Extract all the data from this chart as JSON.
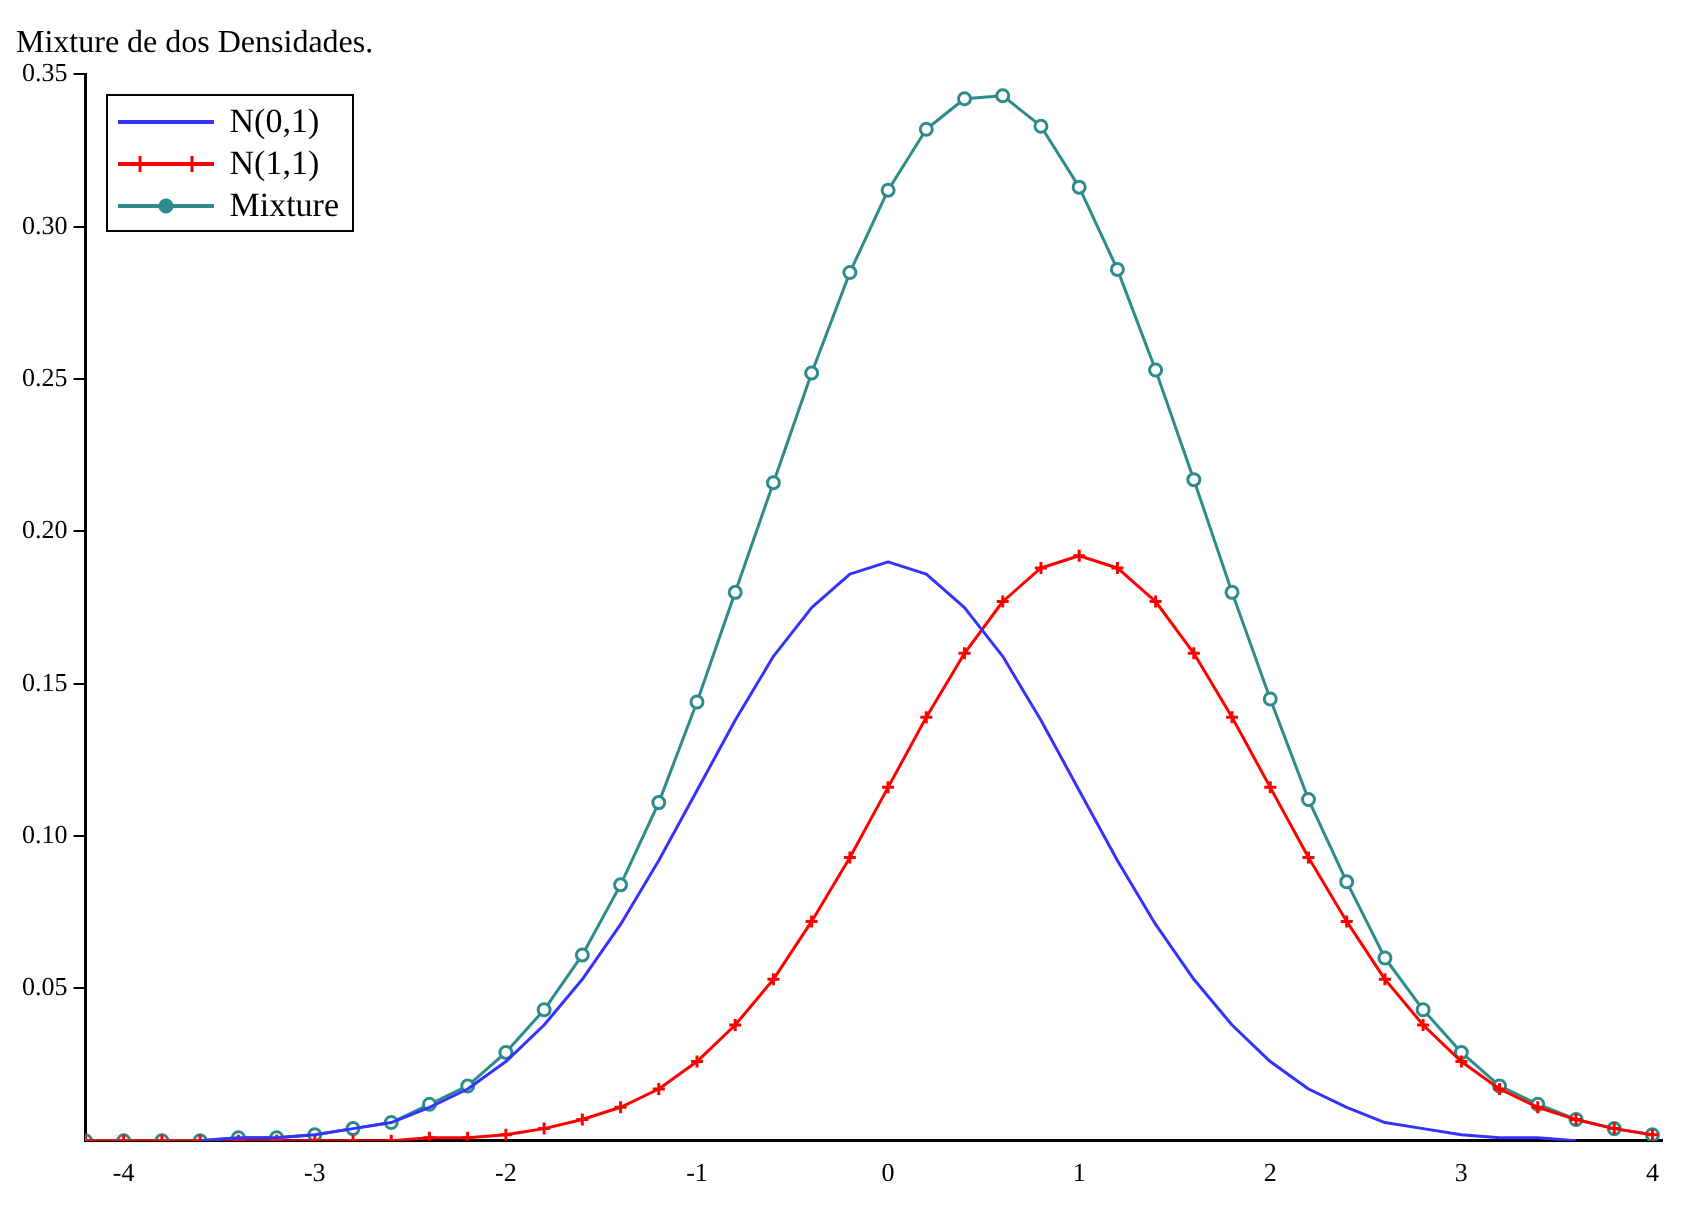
{
  "chart_data": {
    "type": "line",
    "title": "Mixture de dos Densidades.",
    "x": [
      -4.2,
      -4.0,
      -3.8,
      -3.6,
      -3.4,
      -3.2,
      -3.0,
      -2.8,
      -2.6,
      -2.4,
      -2.2,
      -2.0,
      -1.8,
      -1.6,
      -1.4,
      -1.2,
      -1.0,
      -0.8,
      -0.6,
      -0.4,
      -0.2,
      0,
      0.2,
      0.4,
      0.6,
      0.8,
      1.0,
      1.2,
      1.4,
      1.6,
      1.8,
      2.0,
      2.2,
      2.4,
      2.6,
      2.8,
      3.0,
      3.2,
      3.4,
      3.6,
      3.8,
      4.0
    ],
    "series": [
      {
        "name": "N(0,1)",
        "color": "#3333ff",
        "marker": "none",
        "values": [
          null,
          null,
          null,
          0,
          0.001,
          0.001,
          0.002,
          0.004,
          0.006,
          0.011,
          0.017,
          0.026,
          0.038,
          0.053,
          0.071,
          0.092,
          0.115,
          0.138,
          0.159,
          0.175,
          0.186,
          0.19,
          0.186,
          0.175,
          0.159,
          0.138,
          0.115,
          0.092,
          0.071,
          0.053,
          0.038,
          0.026,
          0.017,
          0.011,
          0.006,
          0.004,
          0.002,
          0.001,
          0.001,
          0,
          null,
          null
        ]
      },
      {
        "name": "N(1,1)",
        "color": "#ff0000",
        "marker": "cross",
        "values": [
          0,
          0,
          0,
          0,
          0,
          0,
          0,
          0,
          0,
          0.001,
          0.001,
          0.002,
          0.004,
          0.007,
          0.011,
          0.017,
          0.026,
          0.038,
          0.053,
          0.072,
          0.093,
          0.116,
          0.139,
          0.16,
          0.177,
          0.188,
          0.192,
          0.188,
          0.177,
          0.16,
          0.139,
          0.116,
          0.093,
          0.072,
          0.053,
          0.038,
          0.026,
          0.017,
          0.011,
          0.007,
          0.004,
          0.002
        ]
      },
      {
        "name": "Mixture",
        "color": "#2e8b8b",
        "marker": "circle",
        "values": [
          0,
          0,
          0,
          0,
          0.001,
          0.001,
          0.002,
          0.004,
          0.006,
          0.012,
          0.018,
          0.029,
          0.043,
          0.061,
          0.084,
          0.111,
          0.144,
          0.18,
          0.216,
          0.252,
          0.285,
          0.312,
          0.332,
          0.342,
          0.343,
          0.333,
          0.313,
          0.286,
          0.253,
          0.217,
          0.18,
          0.145,
          0.112,
          0.085,
          0.06,
          0.043,
          0.029,
          0.018,
          0.012,
          0.007,
          0.004,
          0.002
        ]
      }
    ],
    "xlim": [
      -4.2,
      4.05
    ],
    "xticks": [
      -4,
      -3,
      -2,
      -1,
      0,
      1,
      2,
      3,
      4
    ],
    "ylim": [
      0,
      0.35
    ],
    "yticks": [
      {
        "value": 0.05,
        "label": "0.05"
      },
      {
        "value": 0.1,
        "label": "0.10"
      },
      {
        "value": 0.15,
        "label": "0.15"
      },
      {
        "value": 0.2,
        "label": "0.20"
      },
      {
        "value": 0.25,
        "label": "0.25"
      },
      {
        "value": 0.3,
        "label": "0.30"
      },
      {
        "value": 0.35,
        "label": "0.35"
      }
    ],
    "grid": false,
    "legend": "top left"
  }
}
